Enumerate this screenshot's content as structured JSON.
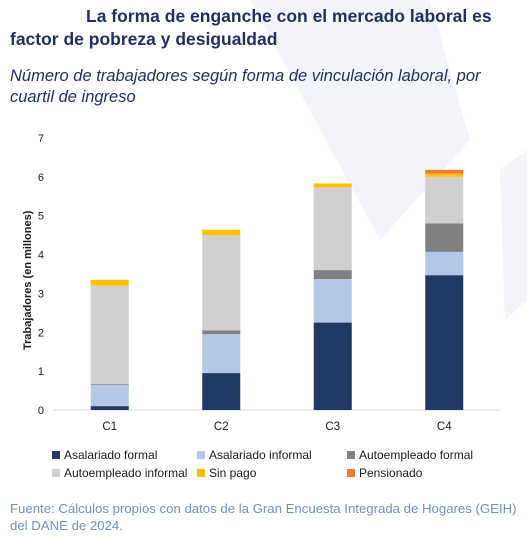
{
  "header": {
    "title": "La forma de enganche con el mercado laboral es factor de pobreza y desigualdad",
    "subtitle": "Número de trabajadores según forma de vinculación laboral, por cuartil de ingreso"
  },
  "footer": {
    "source": "Fuente: Cálculos propios con datos de la Gran Encuesta Integrada de Hogares (GEIH) del DANE de 2024."
  },
  "colors": {
    "title": "#1f3064",
    "source": "#6f92bf",
    "decor_shape": "#f0f2f8"
  },
  "chart_data": {
    "type": "bar",
    "stacked": true,
    "title": "",
    "xlabel": "",
    "ylabel": "Trabajadores (en millones)",
    "ylim": [
      0,
      7
    ],
    "yticks": [
      "0",
      "1",
      "2",
      "3",
      "4",
      "5",
      "6",
      "7"
    ],
    "grid": false,
    "legend_position": "bottom",
    "categories": [
      "C1",
      "C2",
      "C3",
      "C4"
    ],
    "series": [
      {
        "name": "Asalariado formal",
        "color": "#1f3864",
        "values": [
          0.1,
          0.95,
          2.25,
          3.47
        ]
      },
      {
        "name": "Asalariado informal",
        "color": "#b4c7e7",
        "values": [
          0.55,
          1.0,
          1.12,
          0.6
        ]
      },
      {
        "name": "Autoempleado formal",
        "color": "#808080",
        "values": [
          0.02,
          0.1,
          0.23,
          0.73
        ]
      },
      {
        "name": "Autoempleado informal",
        "color": "#d0cece",
        "values": [
          2.53,
          2.45,
          2.13,
          1.2
        ]
      },
      {
        "name": "Sin pago",
        "color": "#ffc000",
        "values": [
          0.15,
          0.14,
          0.1,
          0.08
        ]
      },
      {
        "name": "Pensionado",
        "color": "#ed7d31",
        "values": [
          0.0,
          0.0,
          0.0,
          0.1
        ]
      }
    ]
  }
}
